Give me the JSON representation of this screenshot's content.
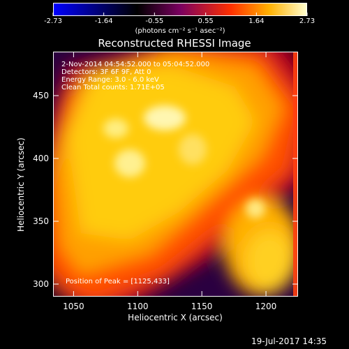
{
  "chart_data": {
    "type": "heatmap",
    "title": "Reconstructed RHESSI Image",
    "xlabel": "Heliocentric X (arcsec)",
    "ylabel": "Heliocentric Y (arcsec)",
    "xlim": [
      1034,
      1225
    ],
    "ylim": [
      290,
      485
    ],
    "xticks": [
      1050,
      1100,
      1150,
      1200
    ],
    "yticks": [
      300,
      350,
      400,
      450
    ],
    "colorbar": {
      "label": "(photons cm⁻² s⁻¹ asec⁻²)",
      "ticks": [
        "-2.73",
        "-1.64",
        "-0.55",
        "0.55",
        "1.64",
        "2.73"
      ],
      "range": [
        -2.73,
        2.73
      ]
    },
    "annotations": [
      " 2-Nov-2014 04:54:52.000 to 05:04:52.000",
      "Detectors: 3F 6F 9F, Att 0",
      "Energy Range: 3.0 - 6.0 keV",
      "Clean     Total counts: 1.71E+05"
    ],
    "peak_label": "Position of Peak = [1125,433]",
    "peak": [
      1125,
      433
    ],
    "grid": false,
    "legend": "none"
  },
  "footer": {
    "timestamp": "19-Jul-2017 14:35"
  }
}
